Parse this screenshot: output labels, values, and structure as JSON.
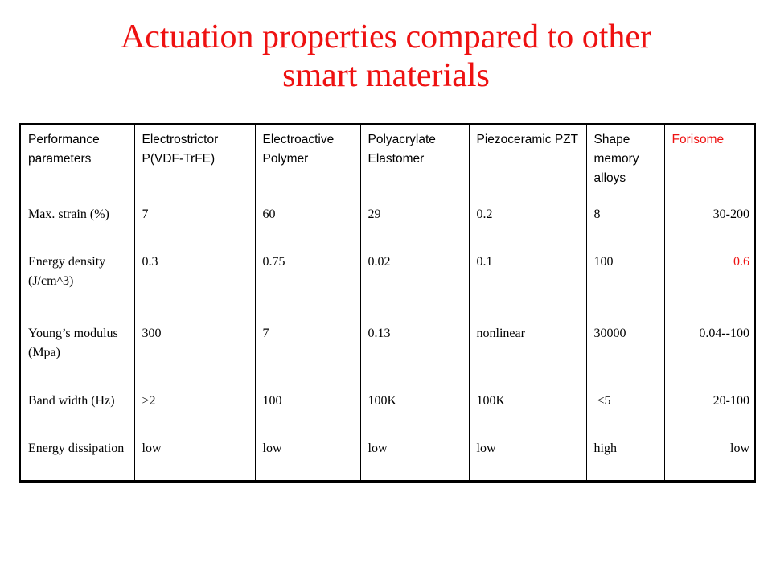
{
  "title": {
    "line1": "Actuation properties compared to other",
    "line2": "smart materials"
  },
  "colors": {
    "title": "#ee1111",
    "forisome": "#ee1111",
    "text": "#000000",
    "border": "#000000"
  },
  "table": {
    "header": [
      "Performance parameters",
      "Electrostrictor P(VDF-TrFE)",
      "Electroactive Polymer",
      "Polyacrylate Elastomer",
      "Piezoceramic PZT",
      "Shape memory alloys",
      "Forisome"
    ],
    "rows": [
      {
        "parameter": "Max. strain (%)",
        "values": [
          "7",
          "60",
          "29",
          "0.2",
          "8",
          "30-200"
        ]
      },
      {
        "parameter": "Energy density (J/cm^3)",
        "values": [
          "0.3",
          "0.75",
          "0.02",
          "0.1",
          "100",
          "0.6"
        ]
      },
      {
        "parameter": "Young’s modulus (Mpa)",
        "values": [
          "300",
          "7",
          "0.13",
          "nonlinear",
          "30000",
          "0.04--100"
        ]
      },
      {
        "parameter": "Band width (Hz)",
        "values": [
          ">2",
          "100",
          "100K",
          "100K",
          " <5",
          "20-100"
        ]
      },
      {
        "parameter": "Energy dissipation",
        "values": [
          "low",
          "low",
          "low",
          "low",
          "high",
          "low"
        ]
      }
    ]
  }
}
